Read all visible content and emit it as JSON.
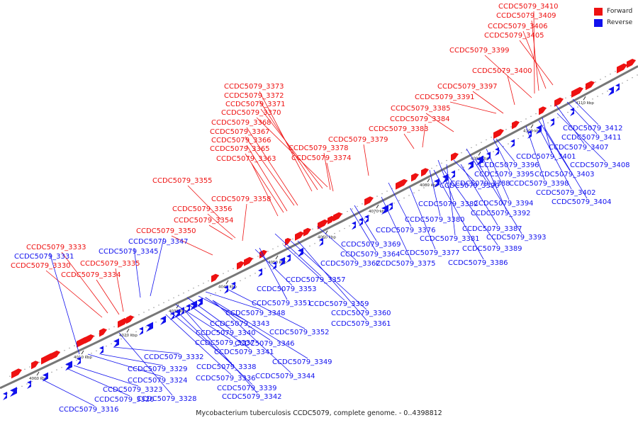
{
  "legend": {
    "forward_label": "Forward",
    "forward_color": "#ee1111",
    "reverse_label": "Reverse",
    "reverse_color": "#1111ee"
  },
  "caption": "Mycobacterium tuberculosis CCDC5079, complete genome. - 0..4398812",
  "line_color": "#777777",
  "ticks": [
    "4000 kbp",
    "4010 kbp",
    "4020 kbp",
    "4030 kbp",
    "4040 kbp",
    "4050 kbp",
    "4060 kbp",
    "4070 kbp",
    "4080 kbp",
    "4090 kbp",
    "4100 kbp",
    "4110 kbp"
  ],
  "forward_labels": [
    "CCDC5079_3410",
    "CCDC5079_3409",
    "CCDC5079_3406",
    "CCDC5079_3405",
    "CCDC5079_3399",
    "CCDC5079_3400",
    "CCDC5079_3397",
    "CCDC5079_3391",
    "CCDC5079_3385",
    "CCDC5079_3384",
    "CCDC5079_3383",
    "CCDC5079_3379",
    "CCDC5079_3378",
    "CCDC5079_3374",
    "CCDC5079_3373",
    "CCDC5079_3372",
    "CCDC5079_3371",
    "CCDC5079_3370",
    "CCDC5079_3368",
    "CCDC5079_3367",
    "CCDC5079_3366",
    "CCDC5079_3365",
    "CCDC5079_3363",
    "CCDC5079_3355",
    "CCDC5079_3358",
    "CCDC5079_3356",
    "CCDC5079_3354",
    "CCDC5079_3350",
    "CCDC5079_3333",
    "CCDC5079_3335",
    "CCDC5079_3330",
    "CCDC5079_3334"
  ],
  "reverse_labels": [
    "CCDC5079_3412",
    "CCDC5079_3411",
    "CCDC5079_3407",
    "CCDC5079_3401",
    "CCDC5079_3408",
    "CCDC5079_3396",
    "CCDC5079_3395",
    "CCDC5079_3403",
    "CCDC5079_3388",
    "CCDC5079_3398",
    "CCDC5079_3390",
    "CCDC5079_3402",
    "CCDC5079_3394",
    "CCDC5079_3404",
    "CCDC5079_3382",
    "CCDC5079_3392",
    "CCDC5079_3380",
    "CCDC5079_3376",
    "CCDC5079_3387",
    "CCDC5079_3393",
    "CCDC5079_3381",
    "CCDC5079_3369",
    "CCDC5079_3389",
    "CCDC5079_3364",
    "CCDC5079_3377",
    "CCDC5079_3362",
    "CCDC5079_3375",
    "CCDC5079_3386",
    "CCDC5079_3347",
    "CCDC5079_3345",
    "CCDC5079_3331",
    "CCDC5079_3357",
    "CCDC5079_3353",
    "CCDC5079_3351",
    "CCDC5079_3359",
    "CCDC5079_3348",
    "CCDC5079_3360",
    "CCDC5079_3343",
    "CCDC5079_3361",
    "CCDC5079_3352",
    "CCDC5079_3340",
    "CCDC5079_3337",
    "CCDC5079_3346",
    "CCDC5079_3341",
    "CCDC5079_3332",
    "CCDC5079_3349",
    "CCDC5079_3338",
    "CCDC5079_3329",
    "CCDC5079_3344",
    "CCDC5079_3324",
    "CCDC5079_3336",
    "CCDC5079_3323",
    "CCDC5079_3339",
    "CCDC5079_3320",
    "CCDC5079_3328",
    "CCDC5079_3342",
    "CCDC5079_3316"
  ]
}
